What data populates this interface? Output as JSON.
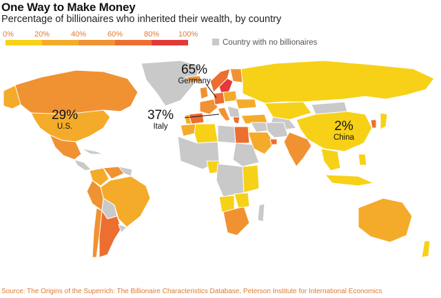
{
  "title": "One Way to Make Money",
  "subtitle": "Percentage of billionaires who inherited their wealth, by country",
  "legend": {
    "ticks": [
      "0%",
      "20%",
      "40%",
      "60%",
      "80%",
      "100%"
    ],
    "colors": [
      "#f7d117",
      "#f4ab2a",
      "#f09232",
      "#ec6e31",
      "#e2393a"
    ],
    "no_data_label": "Country with no billionaires",
    "no_data_color": "#c9c9c9"
  },
  "callouts": [
    {
      "pct": "65%",
      "name": "Germany"
    },
    {
      "pct": "29%",
      "name": "U.S."
    },
    {
      "pct": "37%",
      "name": "Italy"
    },
    {
      "pct": "2%",
      "name": "China"
    }
  ],
  "source": "Source: The Origins of the Superrich: The Billionaire Characteristics Database, Peterson Institute for International Economics",
  "chart_data": {
    "type": "map",
    "value_unit": "% of billionaires who inherited their wealth",
    "labeled_values": [
      {
        "country": "Germany",
        "value": 65
      },
      {
        "country": "U.S.",
        "value": 29
      },
      {
        "country": "Italy",
        "value": 37
      },
      {
        "country": "China",
        "value": 2
      }
    ]
  }
}
